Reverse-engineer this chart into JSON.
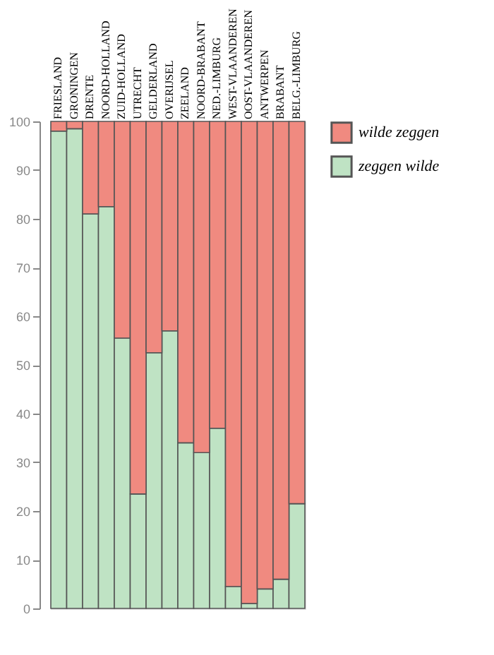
{
  "chart_data": {
    "type": "bar",
    "stacked": true,
    "categories": [
      "FRIESLAND",
      "GRONINGEN",
      "DRENTE",
      "NOORD-HOLLAND",
      "ZUID-HOLLAND",
      "UTRECHT",
      "GELDERLAND",
      "OVERIJSEL",
      "ZEELAND",
      "NOORD-BRABANT",
      "NED.-LIMBURG",
      "WEST-VLAANDEREN",
      "OOST-VLAANDEREN",
      "ANTWERPEN",
      "BRABANT",
      "BELG.-LIMBURG"
    ],
    "series": [
      {
        "name": "zeggen wilde",
        "color": "#bfe3c4",
        "values": [
          98,
          98.5,
          81,
          82.5,
          55.5,
          23.5,
          52.5,
          57,
          34,
          32,
          37,
          4.5,
          1,
          4,
          6,
          21.5
        ]
      },
      {
        "name": "wilde zeggen",
        "color": "#f08a80",
        "values": [
          2,
          1.5,
          19,
          17.5,
          44.5,
          76.5,
          47.5,
          43,
          66,
          68,
          63,
          95.5,
          99,
          96,
          94,
          78.5
        ]
      }
    ],
    "ylim": [
      0,
      100
    ],
    "yticks": [
      0,
      10,
      20,
      30,
      40,
      50,
      60,
      70,
      80,
      90,
      100
    ],
    "legend": "right"
  }
}
